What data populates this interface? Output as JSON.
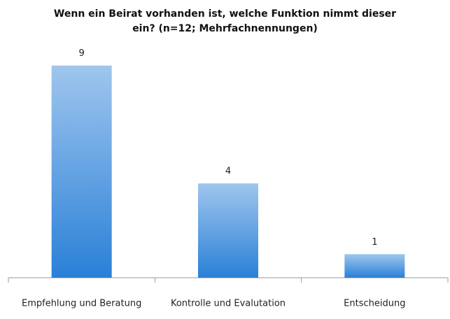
{
  "chart_data": {
    "type": "bar",
    "title": "Wenn ein Beirat vorhanden ist, welche Funktion nimmt dieser ein? (n=12; Mehrfachnennungen)",
    "categories": [
      "Empfehlung und Beratung",
      "Kontrolle und Evalutation",
      "Entscheidung"
    ],
    "values": [
      9,
      4,
      1
    ],
    "color": "#2a80d8",
    "ylim": [
      0,
      10
    ]
  }
}
